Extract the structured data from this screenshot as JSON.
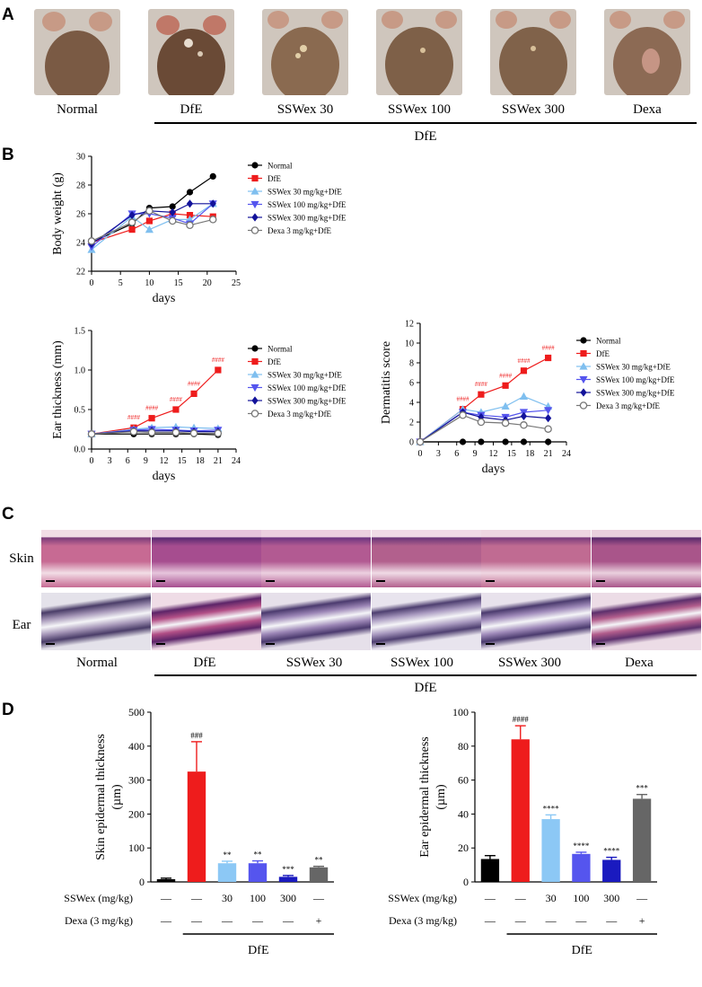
{
  "panels": {
    "a": "A",
    "b": "B",
    "c": "C",
    "d": "D"
  },
  "panel_a": {
    "groups": [
      "Normal",
      "DfE",
      "SSWex 30",
      "SSWex 100",
      "SSWex 300",
      "Dexa"
    ],
    "bracket_label": "DfE",
    "photo_colors": [
      "#7a5a44",
      "#6a4a36",
      "#8a6a50",
      "#7e6048",
      "#80624a",
      "#8c6a54"
    ]
  },
  "panel_c": {
    "row_labels": [
      "Skin",
      "Ear"
    ],
    "groups": [
      "Normal",
      "DfE",
      "SSWex 30",
      "SSWex 100",
      "SSWex 300",
      "Dexa"
    ],
    "bracket_label": "DfE"
  },
  "chart_data": [
    {
      "id": "body-weight",
      "type": "line",
      "ylabel": "Body weight (g)",
      "xlabel": "days",
      "xlim": [
        0,
        25
      ],
      "ylim": [
        22,
        30
      ],
      "xticks": [
        "0",
        "5",
        "10",
        "15",
        "20",
        "25"
      ],
      "yticks": [
        "22",
        "24",
        "26",
        "28",
        "30"
      ],
      "x": [
        0,
        7,
        10,
        14,
        17,
        21
      ],
      "series": [
        {
          "name": "Normal",
          "color": "#000000",
          "marker": "circle",
          "values": [
            24.0,
            25.3,
            26.4,
            26.5,
            27.5,
            28.6
          ]
        },
        {
          "name": "DfE",
          "color": "#ee1c1c",
          "marker": "square",
          "values": [
            24.0,
            24.9,
            25.5,
            26.0,
            25.9,
            25.8
          ]
        },
        {
          "name": "SSWex 30 mg/kg+DfE",
          "color": "#7fbfef",
          "marker": "triangle",
          "values": [
            23.5,
            25.8,
            24.9,
            25.6,
            25.6,
            26.7
          ]
        },
        {
          "name": "SSWex 100 mg/kg+DfE",
          "color": "#5555ee",
          "marker": "tri-down",
          "values": [
            23.7,
            26.0,
            26.0,
            25.7,
            25.3,
            26.7
          ]
        },
        {
          "name": "SSWex 300 mg/kg+DfE",
          "color": "#12129a",
          "marker": "diamond",
          "values": [
            23.9,
            25.9,
            26.2,
            26.1,
            26.7,
            26.7
          ]
        },
        {
          "name": "Dexa 3 mg/kg+DfE",
          "color": "#777777",
          "marker": "open-circle",
          "values": [
            24.1,
            25.4,
            26.2,
            25.5,
            25.2,
            25.6
          ]
        }
      ]
    },
    {
      "id": "ear-thickness",
      "type": "line",
      "ylabel": "Ear thickness (mm)",
      "xlabel": "days",
      "xlim": [
        0,
        24
      ],
      "ylim": [
        0,
        1.5
      ],
      "xticks": [
        "0",
        "3",
        "6",
        "9",
        "12",
        "15",
        "18",
        "21",
        "24"
      ],
      "yticks": [
        "0.0",
        "0.5",
        "1.0",
        "1.5"
      ],
      "x": [
        0,
        7,
        10,
        14,
        17,
        21
      ],
      "dfe_marks": [
        "####",
        "####",
        "####",
        "####",
        "####"
      ],
      "series": [
        {
          "name": "Normal",
          "color": "#000000",
          "marker": "circle",
          "values": [
            0.19,
            0.19,
            0.19,
            0.19,
            0.19,
            0.18
          ]
        },
        {
          "name": "DfE",
          "color": "#ee1c1c",
          "marker": "square",
          "values": [
            0.19,
            0.27,
            0.39,
            0.5,
            0.7,
            1.0
          ]
        },
        {
          "name": "SSWex 30 mg/kg+DfE",
          "color": "#7fbfef",
          "marker": "triangle",
          "values": [
            0.19,
            0.25,
            0.27,
            0.28,
            0.27,
            0.26
          ]
        },
        {
          "name": "SSWex 100 mg/kg+DfE",
          "color": "#5555ee",
          "marker": "tri-down",
          "values": [
            0.19,
            0.24,
            0.25,
            0.24,
            0.23,
            0.24
          ]
        },
        {
          "name": "SSWex 300 mg/kg+DfE",
          "color": "#12129a",
          "marker": "diamond",
          "values": [
            0.19,
            0.23,
            0.23,
            0.23,
            0.22,
            0.22
          ]
        },
        {
          "name": "Dexa 3 mg/kg+DfE",
          "color": "#777777",
          "marker": "open-circle",
          "values": [
            0.19,
            0.22,
            0.21,
            0.21,
            0.2,
            0.2
          ]
        }
      ]
    },
    {
      "id": "dermatitis-score",
      "type": "line",
      "ylabel": "Dermatitis score",
      "xlabel": "days",
      "xlim": [
        0,
        24
      ],
      "ylim": [
        0,
        12
      ],
      "xticks": [
        "0",
        "3",
        "6",
        "9",
        "12",
        "15",
        "18",
        "21",
        "24"
      ],
      "yticks": [
        "0",
        "2",
        "4",
        "6",
        "8",
        "10",
        "12"
      ],
      "x": [
        0,
        7,
        10,
        14,
        17,
        21
      ],
      "dfe_marks": [
        "####",
        "####",
        "####",
        "####",
        "####"
      ],
      "series": [
        {
          "name": "Normal",
          "color": "#000000",
          "marker": "circle",
          "values": [
            0,
            0,
            0,
            0,
            0,
            0
          ]
        },
        {
          "name": "DfE",
          "color": "#ee1c1c",
          "marker": "square",
          "values": [
            0,
            3.3,
            4.8,
            5.7,
            7.2,
            8.5
          ]
        },
        {
          "name": "SSWex 30 mg/kg+DfE",
          "color": "#7fbfef",
          "marker": "triangle",
          "values": [
            0,
            3.3,
            3.0,
            3.6,
            4.6,
            3.6
          ]
        },
        {
          "name": "SSWex 100 mg/kg+DfE",
          "color": "#5555ee",
          "marker": "tri-down",
          "values": [
            0,
            3.0,
            2.7,
            2.5,
            3.0,
            3.2
          ]
        },
        {
          "name": "SSWex 300 mg/kg+DfE",
          "color": "#12129a",
          "marker": "diamond",
          "values": [
            0,
            3.0,
            2.5,
            2.2,
            2.6,
            2.4
          ]
        },
        {
          "name": "Dexa 3 mg/kg+DfE",
          "color": "#777777",
          "marker": "open-circle",
          "values": [
            0,
            2.7,
            2.0,
            1.9,
            1.7,
            1.3
          ]
        }
      ]
    },
    {
      "id": "skin-epidermal-thickness",
      "type": "bar",
      "ylabel_lines": [
        "Skin epidermal thickness",
        "(µm)"
      ],
      "ylim": [
        0,
        500
      ],
      "yticks": [
        "0",
        "100",
        "200",
        "300",
        "400",
        "500"
      ],
      "values": [
        8,
        325,
        55,
        55,
        15,
        43
      ],
      "errors": [
        3,
        88,
        6,
        7,
        4,
        3
      ],
      "colors": [
        "#000000",
        "#ee1c1c",
        "#8cc8f5",
        "#5555ee",
        "#1a1abf",
        "#666666"
      ],
      "annotations": [
        "",
        "###",
        "**",
        "**",
        "***",
        "**"
      ],
      "row_labels": [
        "SSWex (mg/kg)",
        "Dexa (3 mg/kg)"
      ],
      "sswex_row": [
        "—",
        "—",
        "30",
        "100",
        "300",
        "—"
      ],
      "dexa_row": [
        "—",
        "—",
        "—",
        "—",
        "—",
        "+"
      ],
      "bracket_label": "DfE"
    },
    {
      "id": "ear-epidermal-thickness",
      "type": "bar",
      "ylabel_lines": [
        "Ear epidermal thickness",
        "(µm)"
      ],
      "ylim": [
        0,
        100
      ],
      "yticks": [
        "0",
        "20",
        "40",
        "60",
        "80",
        "100"
      ],
      "values": [
        13.5,
        84,
        37,
        16.5,
        13,
        49
      ],
      "errors": [
        2,
        8,
        2.5,
        1,
        1.5,
        2.5
      ],
      "colors": [
        "#000000",
        "#ee1c1c",
        "#8cc8f5",
        "#5555ee",
        "#1a1abf",
        "#666666"
      ],
      "annotations": [
        "",
        "####",
        "****",
        "****",
        "****",
        "***"
      ],
      "row_labels": [
        "SSWex (mg/kg)",
        "Dexa (3 mg/kg)"
      ],
      "sswex_row": [
        "—",
        "—",
        "30",
        "100",
        "300",
        "—"
      ],
      "dexa_row": [
        "—",
        "—",
        "—",
        "—",
        "—",
        "+"
      ],
      "bracket_label": "DfE"
    }
  ]
}
